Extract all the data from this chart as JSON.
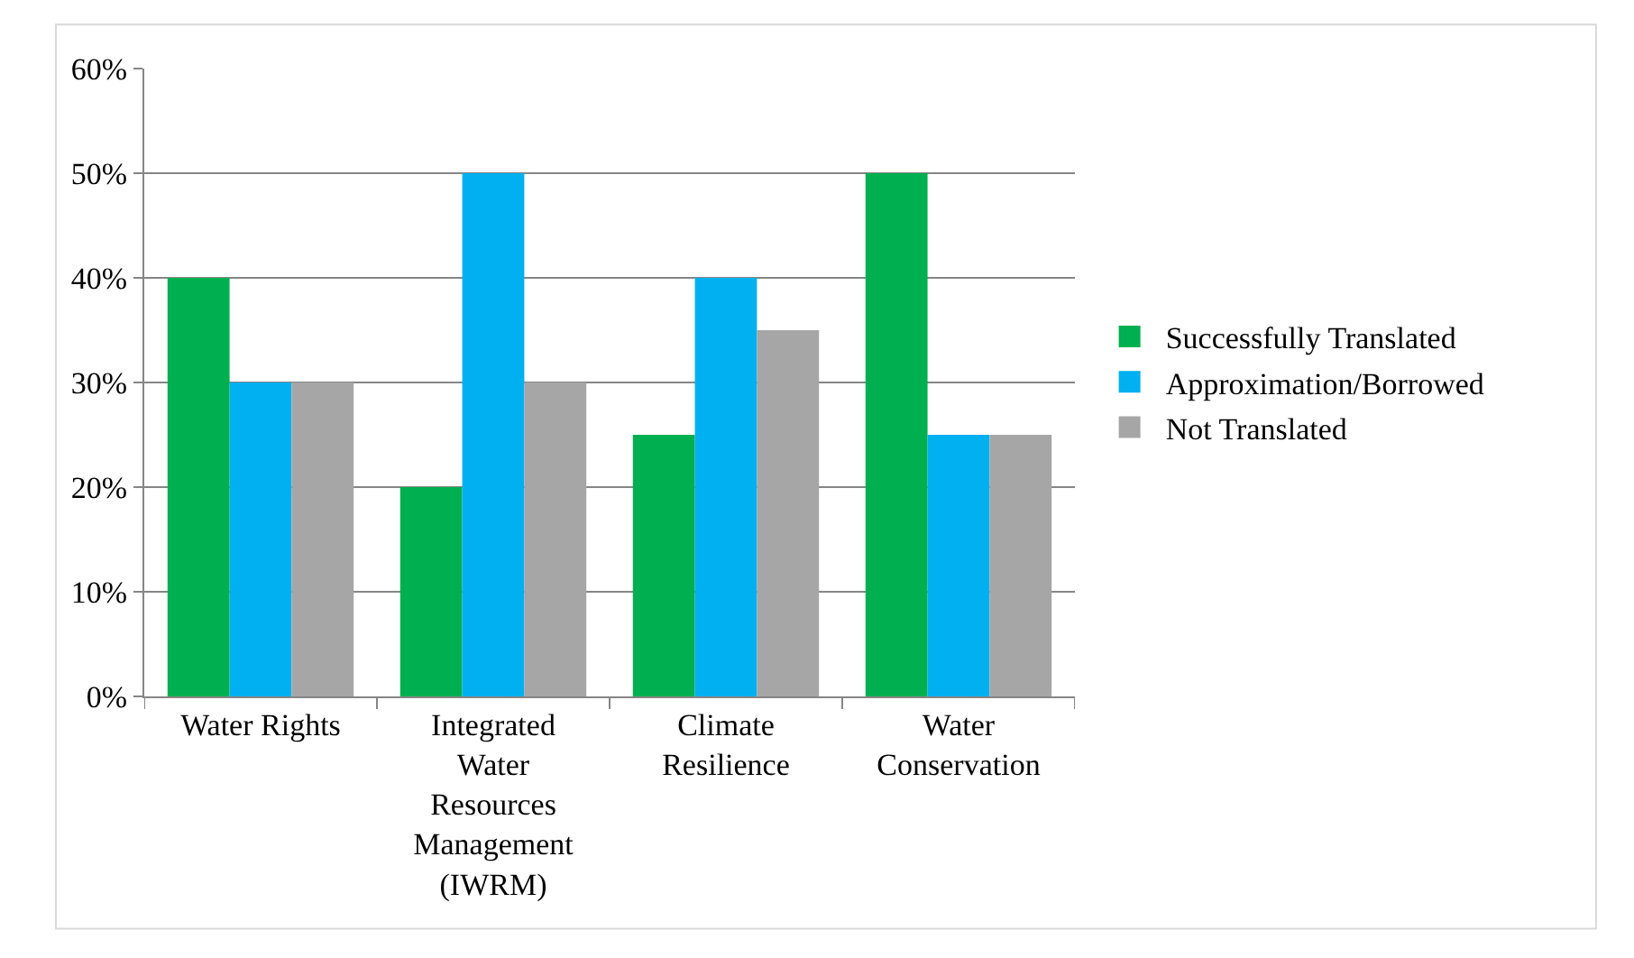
{
  "chart_data": {
    "type": "bar",
    "categories": [
      "Water Rights",
      "Integrated Water Resources Management (IWRM)",
      "Climate Resilience",
      "Water Conservation"
    ],
    "series": [
      {
        "name": "Successfully Translated",
        "color": "#00b050",
        "values": [
          40,
          20,
          25,
          50
        ]
      },
      {
        "name": "Approximation/Borrowed",
        "color": "#00b0f0",
        "values": [
          30,
          50,
          40,
          25
        ]
      },
      {
        "name": "Not Translated",
        "color": "#a6a6a6",
        "values": [
          30,
          30,
          35,
          25
        ]
      }
    ],
    "ylim": [
      0,
      60
    ],
    "yticks": [
      {
        "value": 0,
        "label": "0%"
      },
      {
        "value": 10,
        "label": "10%"
      },
      {
        "value": 20,
        "label": "20%"
      },
      {
        "value": 30,
        "label": "30%"
      },
      {
        "value": 40,
        "label": "40%"
      },
      {
        "value": 50,
        "label": "50%"
      },
      {
        "value": 60,
        "label": "60%"
      }
    ],
    "grid": "y",
    "legend": "right"
  }
}
